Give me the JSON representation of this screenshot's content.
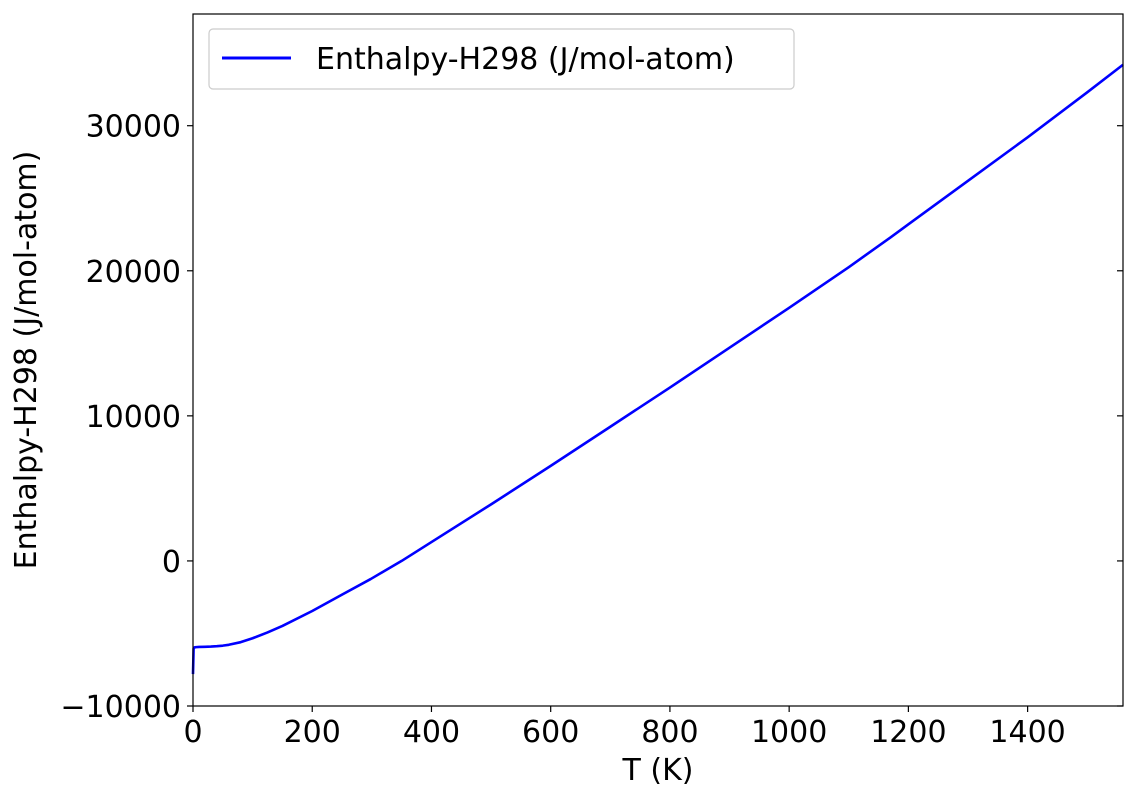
{
  "chart_data": {
    "type": "line",
    "xlabel": "T (K)",
    "ylabel": "Enthalpy-H298 (J/mol-atom)",
    "xlim": [
      0,
      1560
    ],
    "ylim": [
      -10000,
      37700
    ],
    "xticks": [
      0,
      200,
      400,
      600,
      800,
      1000,
      1200,
      1400
    ],
    "yticks": [
      -10000,
      0,
      10000,
      20000,
      30000
    ],
    "xtick_labels": [
      "0",
      "200",
      "400",
      "600",
      "800",
      "1000",
      "1200",
      "1400"
    ],
    "ytick_labels": [
      "−10000",
      "0",
      "10000",
      "20000",
      "30000"
    ],
    "grid": false,
    "legend_position": "top-left",
    "colors": {
      "line": "#0000ff",
      "axes": "#000000",
      "legend_border": "#cccccc"
    },
    "series": [
      {
        "name": "Enthalpy-H298 (J/mol-atom)",
        "x": [
          0,
          1,
          3,
          10,
          20,
          30,
          40,
          50,
          60,
          80,
          100,
          125,
          150,
          200,
          250,
          298,
          350,
          400,
          500,
          600,
          700,
          800,
          900,
          1000,
          1100,
          1170,
          1200,
          1300,
          1400,
          1500,
          1560
        ],
        "y": [
          -7800,
          -6050,
          -5950,
          -5930,
          -5920,
          -5905,
          -5880,
          -5840,
          -5780,
          -5600,
          -5330,
          -4930,
          -4480,
          -3450,
          -2320,
          -1250,
          0,
          1300,
          3900,
          6550,
          9250,
          11950,
          14700,
          17450,
          20250,
          22300,
          23200,
          26200,
          29200,
          32300,
          34200
        ]
      }
    ]
  }
}
